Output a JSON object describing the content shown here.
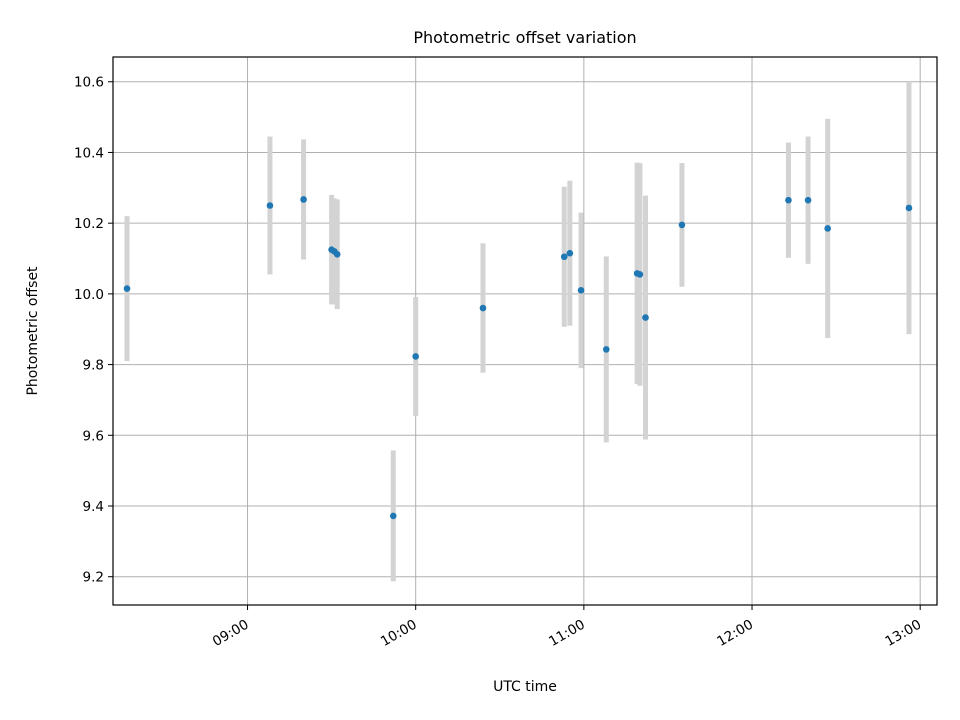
{
  "chart_data": {
    "type": "scatter",
    "title": "Photometric offset variation",
    "xlabel": "UTC time",
    "ylabel": "Photometric offset",
    "x_tick_labels": [
      "09:00",
      "10:00",
      "11:00",
      "12:00",
      "13:00"
    ],
    "y_tick_labels": [
      "9.2",
      "9.4",
      "9.6",
      "9.8",
      "10.0",
      "10.2",
      "10.4",
      "10.6"
    ],
    "xlim": [
      "08:12",
      "13:06"
    ],
    "ylim": [
      9.12,
      10.67
    ],
    "grid": true,
    "legend": "none",
    "colors": {
      "point": "#1f77b4",
      "error_bar": "#d3d3d3"
    },
    "series": [
      {
        "points": [
          {
            "x": "08:17",
            "y": 10.015,
            "yerr": 0.205
          },
          {
            "x": "09:08",
            "y": 10.25,
            "yerr": 0.195
          },
          {
            "x": "09:20",
            "y": 10.267,
            "yerr": 0.17
          },
          {
            "x": "09:30",
            "y": 10.125,
            "yerr": 0.155
          },
          {
            "x": "09:31",
            "y": 10.12,
            "yerr": 0.15
          },
          {
            "x": "09:32",
            "y": 10.112,
            "yerr": 0.155
          },
          {
            "x": "09:52",
            "y": 9.372,
            "yerr": 0.185
          },
          {
            "x": "10:00",
            "y": 9.823,
            "yerr": 0.168
          },
          {
            "x": "10:24",
            "y": 9.96,
            "yerr": 0.183
          },
          {
            "x": "10:53",
            "y": 10.105,
            "yerr": 0.198
          },
          {
            "x": "10:55",
            "y": 10.115,
            "yerr": 0.205
          },
          {
            "x": "10:59",
            "y": 10.01,
            "yerr": 0.22
          },
          {
            "x": "11:08",
            "y": 9.843,
            "yerr": 0.263
          },
          {
            "x": "11:19",
            "y": 10.058,
            "yerr": 0.313
          },
          {
            "x": "11:20",
            "y": 10.055,
            "yerr": 0.315
          },
          {
            "x": "11:22",
            "y": 9.933,
            "yerr": 0.345
          },
          {
            "x": "11:35",
            "y": 10.195,
            "yerr": 0.175
          },
          {
            "x": "12:13",
            "y": 10.265,
            "yerr": 0.163
          },
          {
            "x": "12:20",
            "y": 10.265,
            "yerr": 0.18
          },
          {
            "x": "12:27",
            "y": 10.185,
            "yerr": 0.31
          },
          {
            "x": "12:56",
            "y": 10.243,
            "yerr": 0.357
          }
        ]
      }
    ]
  }
}
